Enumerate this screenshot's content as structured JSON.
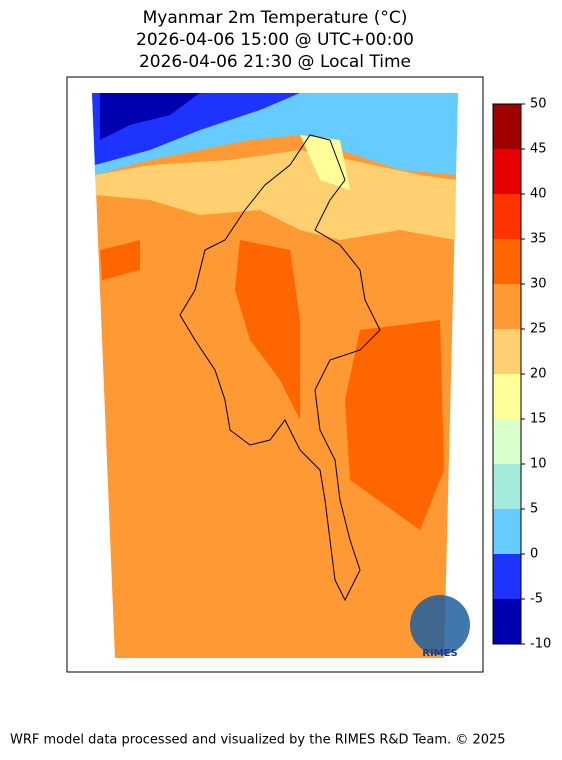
{
  "header": {
    "title_lines": [
      "Myanmar 2m Temperature (°C)",
      "2026-04-06 15:00 @ UTC+00:00",
      "2026-04-06 21:30 @ Local Time"
    ]
  },
  "colorbar": {
    "lim": [
      -10,
      50
    ],
    "ticks": [
      -10,
      -5,
      0,
      5,
      10,
      15,
      20,
      25,
      30,
      35,
      40,
      45,
      50
    ],
    "colors": [
      "#0000b0",
      "#1f33ff",
      "#66ccff",
      "#a3ebdd",
      "#d9ffcc",
      "#ffff99",
      "#ffd070",
      "#ff9933",
      "#ff6600",
      "#ff3300",
      "#e60000",
      "#a00000"
    ]
  },
  "logo": {
    "text": "RIMES"
  },
  "footer": {
    "text": "WRF model data processed and visualized by the RIMES R&D Team. © 2025"
  }
}
